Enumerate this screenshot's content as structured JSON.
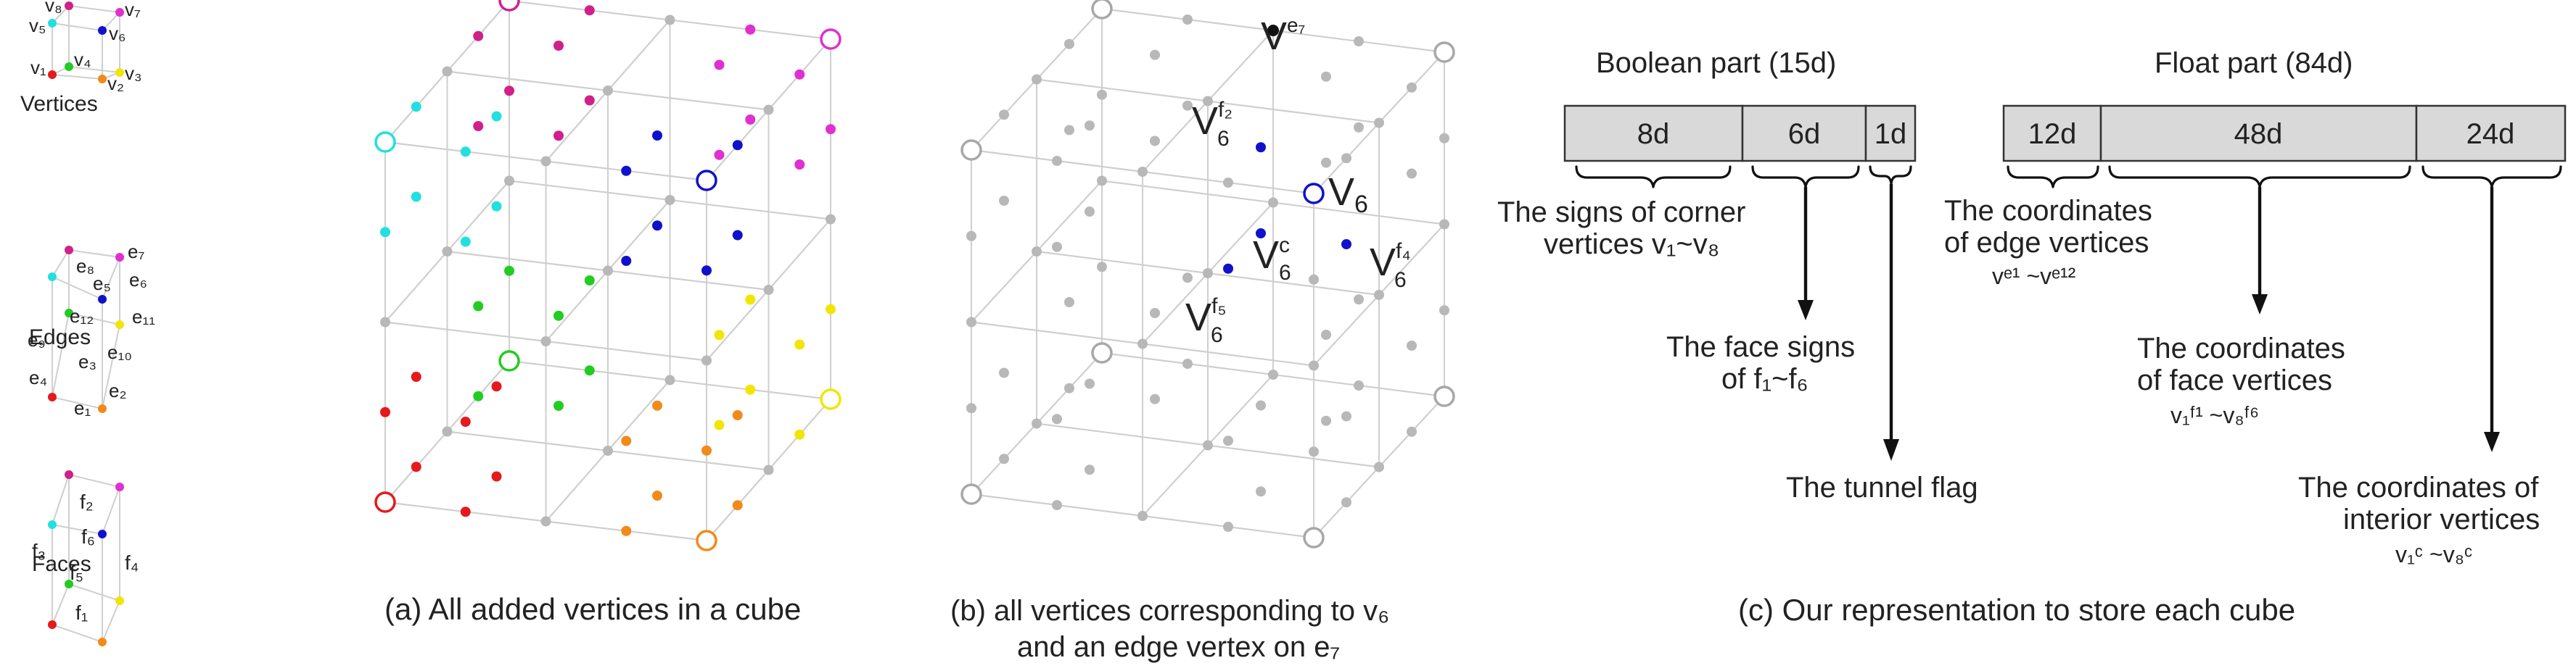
{
  "legend": {
    "vertices": {
      "title": "Vertices",
      "labels": [
        "v₈",
        "v₇",
        "v₅",
        "v₆",
        "v₄",
        "v₃",
        "v₁",
        "v₂"
      ]
    },
    "edges": {
      "title": "Edges",
      "labels": [
        "e₈",
        "e₇",
        "e₆",
        "e₅",
        "e₁₂",
        "e₁₁",
        "e₉",
        "e₃",
        "e₁₀",
        "e₄",
        "e₂",
        "e₁"
      ]
    },
    "faces": {
      "title": "Faces",
      "labels": [
        "f₂",
        "f₆",
        "f₃",
        "f₄",
        "f₅",
        "f₁"
      ]
    }
  },
  "panel_a": {
    "caption": "(a) All added vertices in a cube"
  },
  "panel_b": {
    "caption_line1": "(b) all vertices corresponding to v₆",
    "caption_line2": "and an edge vertex on e₇",
    "labels": {
      "ve7": {
        "base": "V",
        "sup": "e₇"
      },
      "vf2": {
        "base": "V",
        "sub": "6",
        "sup": "f₂"
      },
      "v6": {
        "base": "V",
        "sub": "6"
      },
      "vc": {
        "base": "V",
        "sub": "6",
        "sup": "c"
      },
      "vf4": {
        "base": "V",
        "sub": "6",
        "sup": "f₄"
      },
      "vf5": {
        "base": "V",
        "sub": "6",
        "sup": "f₅"
      }
    }
  },
  "panel_c": {
    "caption": "(c) Our representation to store each cube",
    "boolean": {
      "title": "Boolean part (15d)",
      "cells": [
        "8d",
        "6d",
        "1d"
      ],
      "desc1_line1": "The signs of corner",
      "desc1_line2": "vertices v₁~v₈",
      "desc2_line1": "The face signs",
      "desc2_line2": "of f₁~f₆",
      "desc3": "The tunnel flag"
    },
    "float": {
      "title": "Float part (84d)",
      "cells": [
        "12d",
        "48d",
        "24d"
      ],
      "desc1_line1": "The coordinates",
      "desc1_line2": "of edge vertices",
      "desc1_line3": "vᵉ¹ ~vᵉ¹²",
      "desc2_line1": "The coordinates",
      "desc2_line2": "of face vertices",
      "desc2_line3": "v₁ᶠ¹ ~v₈ᶠ⁶",
      "desc3_line1": "The coordinates of",
      "desc3_line2": "interior vertices",
      "desc3_line3": "v₁ᶜ ~v₈ᶜ"
    }
  },
  "colors": {
    "v1": "#e41a1c",
    "v2": "#f28a1a",
    "v3": "#f2e600",
    "v4": "#22cc22",
    "v5": "#22e0e0",
    "v6": "#1111cc",
    "v7": "#e030d0",
    "v8": "#d0208a",
    "gray": "#b8b8b8",
    "black": "#111111"
  }
}
